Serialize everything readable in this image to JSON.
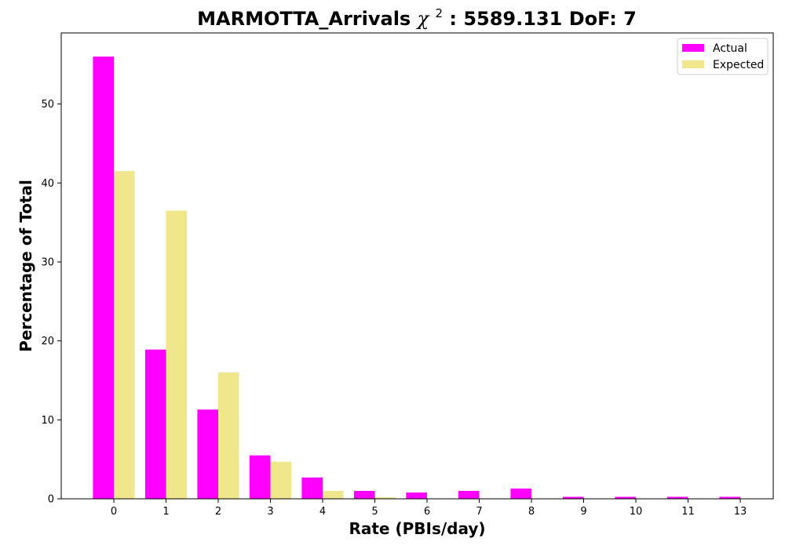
{
  "chart_data": {
    "type": "bar",
    "title": "MARMOTTA_Arrivals χ²: 5589.131 DoF: 7",
    "title_parts": {
      "prefix": "MARMOTTA_Arrivals ",
      "chi_symbol": "χ",
      "chi_superscript": "2",
      "suffix": ": 5589.131 DoF: 7"
    },
    "xlabel": "Rate (PBIs/day)",
    "ylabel": "Percentage of Total",
    "categories": [
      "0",
      "1",
      "2",
      "3",
      "4",
      "5",
      "6",
      "7",
      "8",
      "9",
      "10",
      "11",
      "13"
    ],
    "series": [
      {
        "name": "Actual",
        "color": "#ff00ff",
        "values": [
          56.0,
          18.9,
          11.3,
          5.5,
          2.7,
          1.0,
          0.8,
          1.0,
          1.3,
          0.25,
          0.25,
          0.25,
          0.25
        ]
      },
      {
        "name": "Expected",
        "color": "#f0e68c",
        "values": [
          41.5,
          36.5,
          16.0,
          4.7,
          1.0,
          0.2,
          0.05,
          0.0,
          0.0,
          0.0,
          0.0,
          0.0,
          0.0
        ]
      }
    ],
    "ylim": [
      0,
      59
    ],
    "yticks": [
      0,
      10,
      20,
      30,
      40,
      50
    ],
    "legend": {
      "placement": "top-right",
      "entries": [
        "Actual",
        "Expected"
      ]
    },
    "grid": false
  }
}
